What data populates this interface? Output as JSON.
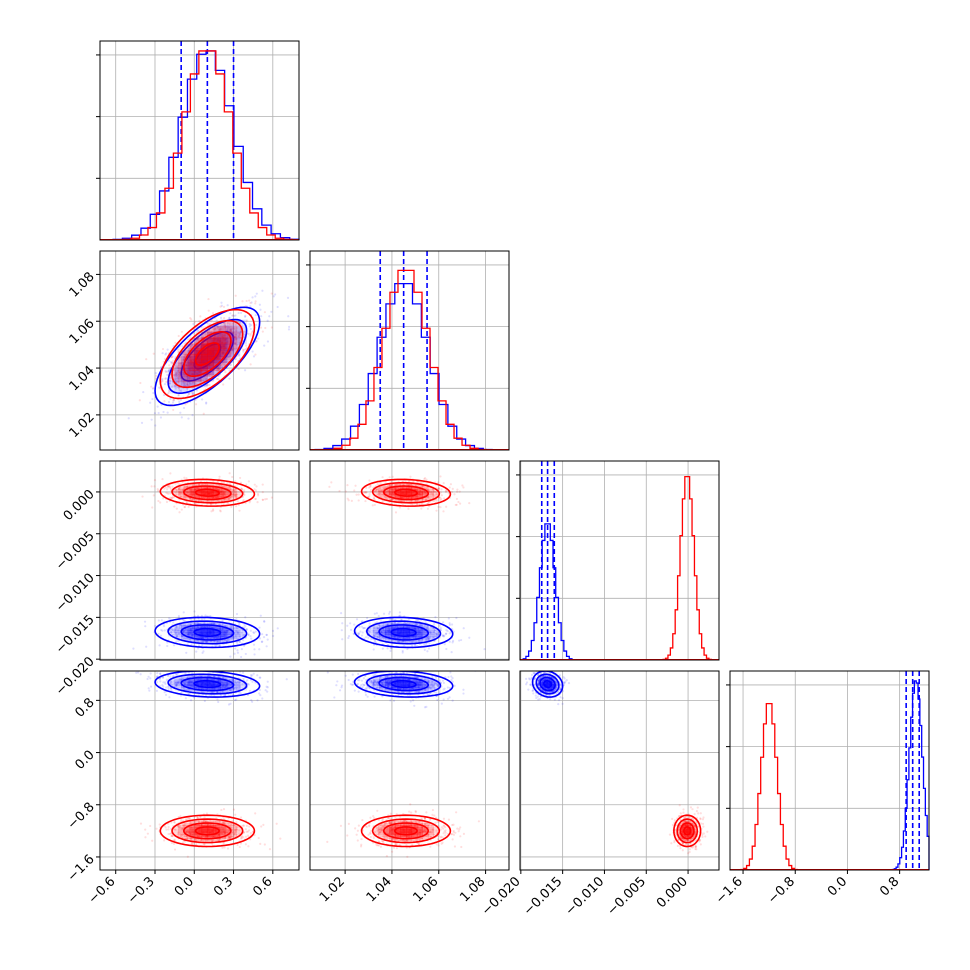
{
  "chart_data": {
    "type": "corner",
    "title": "",
    "parameters": [
      {
        "ticks": [
          -0.6,
          -0.3,
          0.0,
          0.3,
          0.6
        ],
        "tick_labels": [
          "−0.6",
          "−0.3",
          "0.0",
          "0.3",
          "0.6"
        ],
        "range": [
          -0.72,
          0.8
        ]
      },
      {
        "ticks": [
          1.02,
          1.04,
          1.06,
          1.08
        ],
        "tick_labels": [
          "1.02",
          "1.04",
          "1.06",
          "1.08"
        ],
        "range": [
          1.005,
          1.09
        ]
      },
      {
        "ticks": [
          -0.02,
          -0.015,
          -0.01,
          -0.005,
          0.0
        ],
        "tick_labels": [
          "−0.020",
          "−0.015",
          "−0.010",
          "−0.005",
          "0.000"
        ],
        "range": [
          -0.0201,
          0.0037
        ]
      },
      {
        "ticks": [
          -1.6,
          -0.8,
          0.0,
          0.8
        ],
        "tick_labels": [
          "−1.6",
          "−0.8",
          "0.0",
          "0.8"
        ],
        "range": [
          -1.8,
          1.25
        ]
      }
    ],
    "grid": true,
    "series": [
      {
        "color": "#0000ff",
        "centers": [
          0.1,
          1.045,
          -0.0168,
          1.05
        ],
        "sigmas": [
          0.2,
          0.0105,
          0.0009,
          0.1
        ],
        "rho01": 0.7,
        "quantiles": [
          [
            -0.1,
            0.1,
            0.3
          ],
          [
            1.035,
            1.045,
            1.055
          ],
          [
            -0.0175,
            -0.0168,
            -0.016
          ],
          [
            0.9,
            1.0,
            1.1
          ]
        ],
        "hist_peaks": [
          1.0,
          0.88,
          0.72,
          1.0
        ]
      },
      {
        "color": "#ff0000",
        "centers": [
          0.1,
          1.046,
          -0.0001,
          -1.2
        ],
        "sigmas": [
          0.18,
          0.0095,
          0.0008,
          0.12
        ],
        "rho01": 0.6,
        "quantiles": null,
        "hist_peaks": [
          1.0,
          0.95,
          0.97,
          0.88
        ]
      }
    ]
  }
}
